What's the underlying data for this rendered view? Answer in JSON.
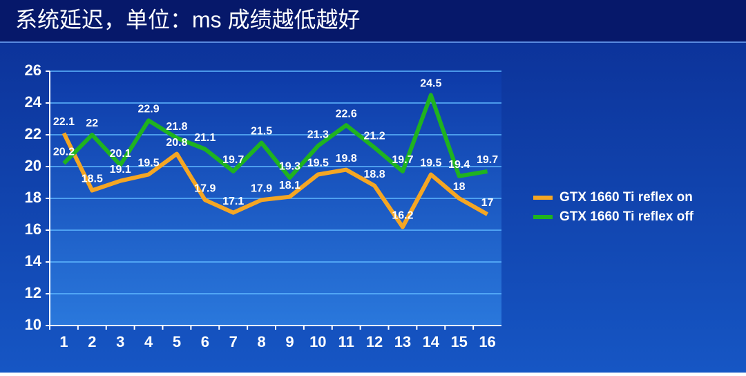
{
  "chart_data": {
    "type": "line",
    "title": "系统延迟，单位：ms 成绩越低越好",
    "categories": [
      "1",
      "2",
      "3",
      "4",
      "5",
      "6",
      "7",
      "8",
      "9",
      "10",
      "11",
      "12",
      "13",
      "14",
      "15",
      "16"
    ],
    "series": [
      {
        "name": "GTX 1660 Ti reflex on",
        "color": "#f5a623",
        "values": [
          22.1,
          18.5,
          19.1,
          19.5,
          20.8,
          17.9,
          17.1,
          17.9,
          18.1,
          19.5,
          19.8,
          18.8,
          16.2,
          19.5,
          18,
          17
        ]
      },
      {
        "name": "GTX 1660 Ti reflex off",
        "color": "#1fb31f",
        "values": [
          20.2,
          22,
          20.1,
          22.9,
          21.8,
          21.1,
          19.7,
          21.5,
          19.3,
          21.3,
          22.6,
          21.2,
          19.7,
          24.5,
          19.4,
          19.7
        ]
      }
    ],
    "ylim": [
      10,
      26
    ],
    "yticks": [
      10,
      12,
      14,
      16,
      18,
      20,
      22,
      24,
      26
    ],
    "grid": true,
    "legend": "right"
  }
}
